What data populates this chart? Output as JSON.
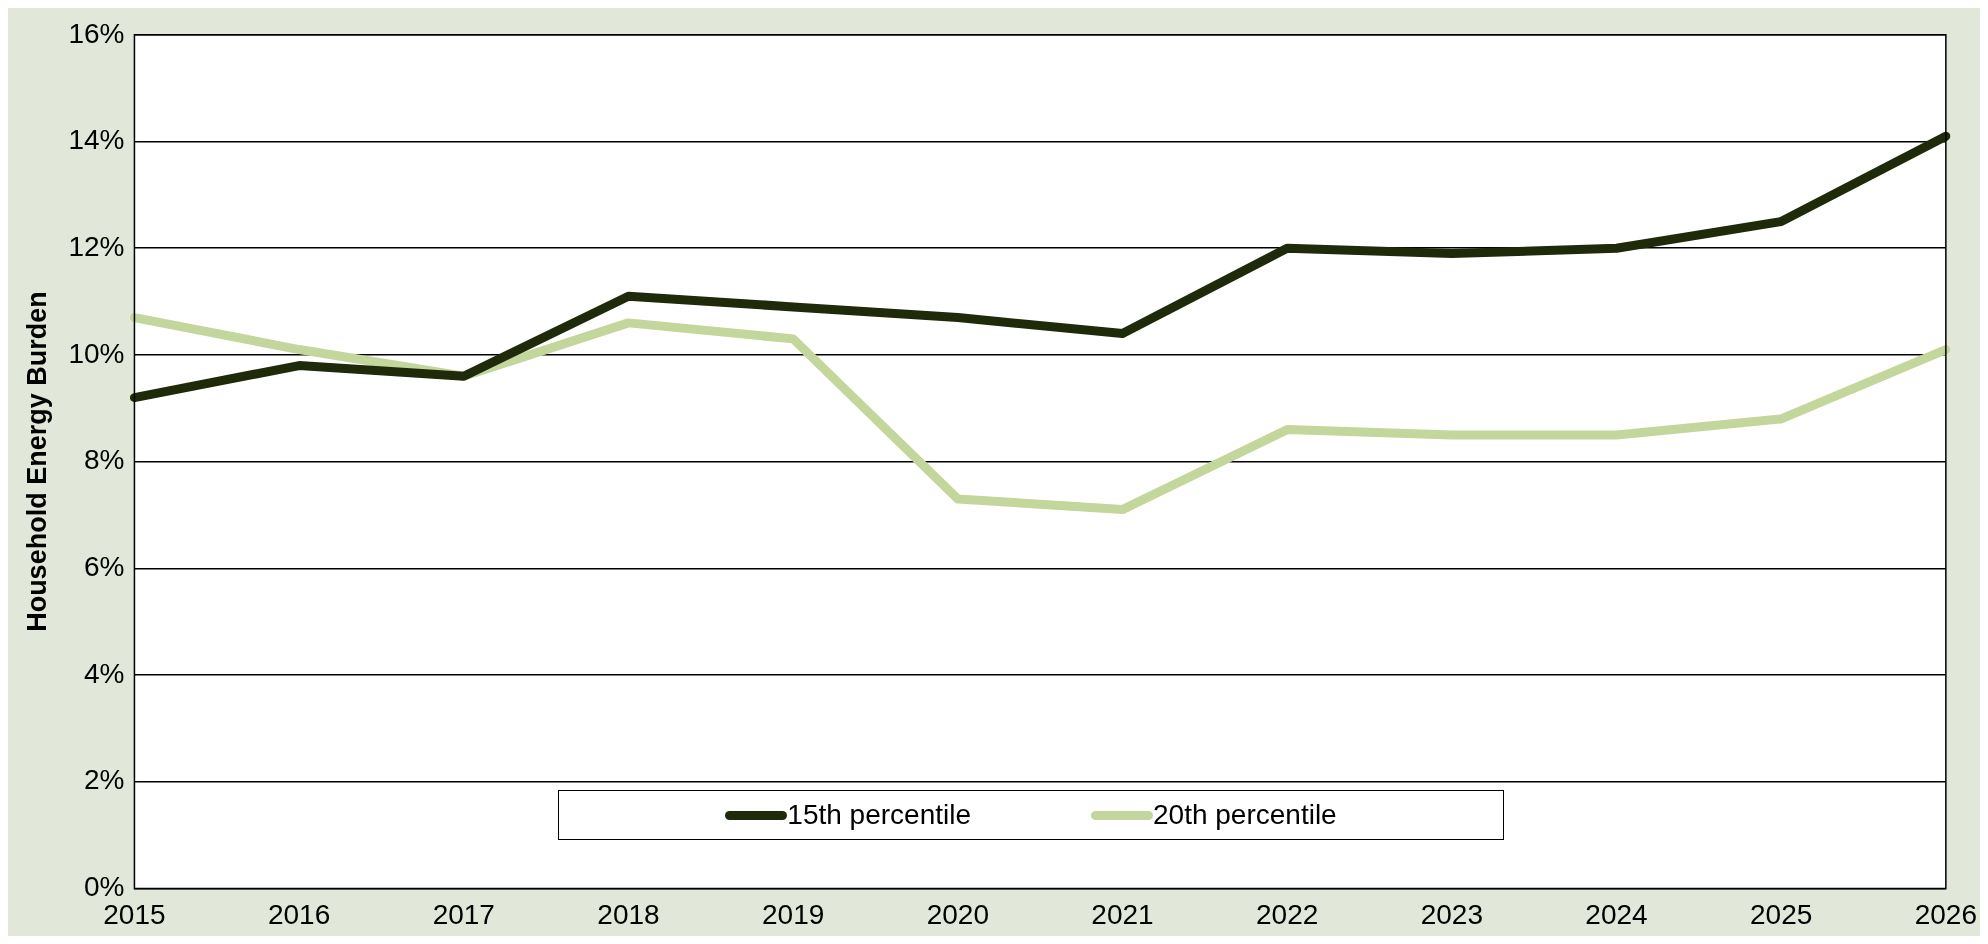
{
  "chart_data": {
    "type": "line",
    "ylabel": "Household Energy Burden",
    "categories": [
      "2015",
      "2016",
      "2017",
      "2018",
      "2019",
      "2020",
      "2021",
      "2022",
      "2023",
      "2024",
      "2025",
      "2026"
    ],
    "series": [
      {
        "name": "15th percentile",
        "color": "#1f2a0a",
        "values": [
          9.2,
          9.8,
          9.6,
          11.1,
          10.9,
          10.7,
          10.4,
          12.0,
          11.9,
          12.0,
          12.5,
          14.1
        ]
      },
      {
        "name": "20th percentile",
        "color": "#c3d69b",
        "values": [
          10.7,
          10.1,
          9.6,
          10.6,
          10.3,
          7.3,
          7.1,
          8.6,
          8.5,
          8.5,
          8.8,
          10.1
        ]
      }
    ],
    "ylim": [
      0,
      16
    ],
    "yticks": [
      {
        "value": 0,
        "label": "0%"
      },
      {
        "value": 2,
        "label": "2%"
      },
      {
        "value": 4,
        "label": "4%"
      },
      {
        "value": 6,
        "label": "6%"
      },
      {
        "value": 8,
        "label": "8%"
      },
      {
        "value": 10,
        "label": "10%"
      },
      {
        "value": 12,
        "label": "12%"
      },
      {
        "value": 14,
        "label": "14%"
      },
      {
        "value": 16,
        "label": "16%"
      }
    ],
    "grid": "y",
    "legend": "bottom",
    "marker": "none",
    "line_style": "solid"
  }
}
